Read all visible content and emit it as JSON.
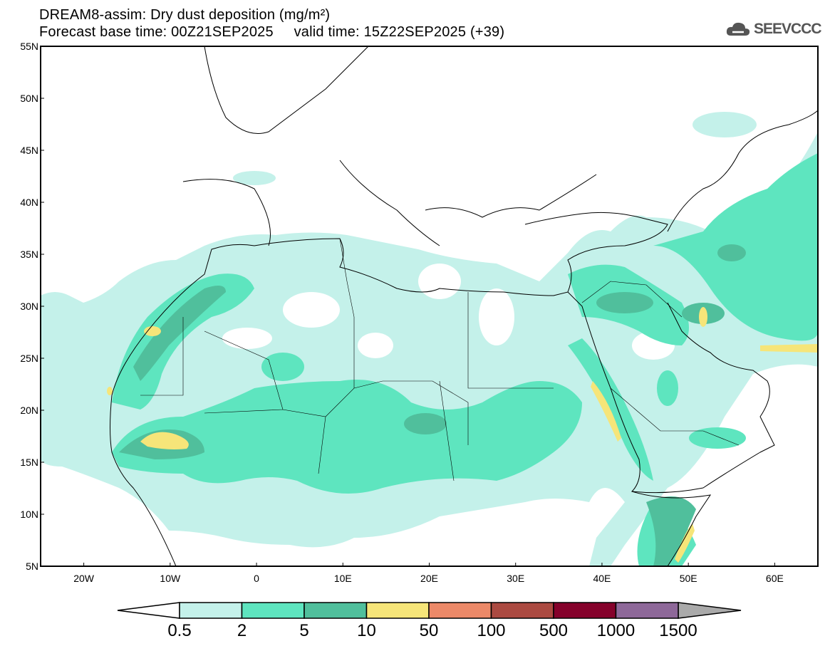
{
  "header": {
    "title": "DREAM8-assim: Dry dust deposition (mg/m²)",
    "subtitle": "Forecast base time: 00Z21SEP2025     valid time: 15Z22SEP2025 (+39)"
  },
  "logo": {
    "text": "SEEVCCC",
    "icon": "cloud-icon"
  },
  "map": {
    "lon_range": [
      -25,
      65
    ],
    "lat_range": [
      5,
      55
    ],
    "lon_ticks": [
      {
        "v": -20,
        "label": "20W"
      },
      {
        "v": -10,
        "label": "10W"
      },
      {
        "v": 0,
        "label": "0"
      },
      {
        "v": 10,
        "label": "10E"
      },
      {
        "v": 20,
        "label": "20E"
      },
      {
        "v": 30,
        "label": "30E"
      },
      {
        "v": 40,
        "label": "40E"
      },
      {
        "v": 50,
        "label": "50E"
      },
      {
        "v": 60,
        "label": "60E"
      }
    ],
    "lat_ticks": [
      {
        "v": 5,
        "label": "5N"
      },
      {
        "v": 10,
        "label": "10N"
      },
      {
        "v": 15,
        "label": "15N"
      },
      {
        "v": 20,
        "label": "20N"
      },
      {
        "v": 25,
        "label": "25N"
      },
      {
        "v": 30,
        "label": "30N"
      },
      {
        "v": 35,
        "label": "35N"
      },
      {
        "v": 40,
        "label": "40N"
      },
      {
        "v": 45,
        "label": "45N"
      },
      {
        "v": 50,
        "label": "50N"
      },
      {
        "v": 55,
        "label": "55N"
      }
    ]
  },
  "colorbar": {
    "labels": [
      "0.5",
      "2",
      "5",
      "10",
      "50",
      "100",
      "500",
      "1000",
      "1500"
    ],
    "colors": [
      "#c4f1ea",
      "#5ee5bf",
      "#50bf9c",
      "#f6e579",
      "#ec8968",
      "#ab4a41",
      "#85012b",
      "#8e6899"
    ],
    "under_color": "#ffffff",
    "over_color": "#aaaaaa"
  }
}
